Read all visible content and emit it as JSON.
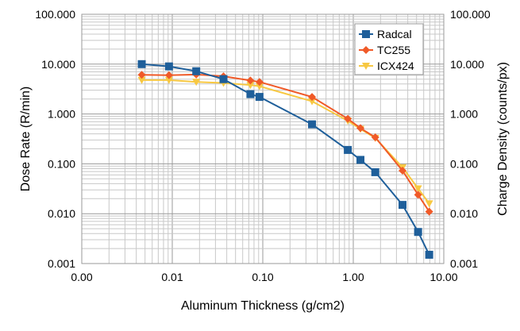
{
  "chart_data": {
    "type": "scatter",
    "xlabel": "Aluminum Thickness (g/cm2)",
    "ylabel_left": "Dose Rate (R/min)",
    "ylabel_right": "Charge Density (counts/px)",
    "x_scale": "log",
    "y_scale": "log",
    "xlim": [
      0.001,
      10
    ],
    "ylim": [
      0.001,
      100
    ],
    "x_ticks": [
      "0.00",
      "0.01",
      "0.10",
      "1.00",
      "10.00"
    ],
    "y_ticks": [
      "0.001",
      "0.010",
      "0.100",
      "1.000",
      "10.000",
      "100.000"
    ],
    "grid": true,
    "legend_position": "top-right",
    "series": [
      {
        "name": "Radcal",
        "color": "#1f5f9a",
        "marker": "square",
        "x": [
          0.0046,
          0.0092,
          0.0184,
          0.0368,
          0.073,
          0.092,
          0.35,
          0.87,
          1.2,
          1.75,
          3.5,
          5.2,
          6.9
        ],
        "y": [
          10.0,
          9.0,
          7.2,
          5.0,
          2.5,
          2.2,
          0.62,
          0.19,
          0.12,
          0.068,
          0.015,
          0.0043,
          0.0015
        ]
      },
      {
        "name": "TC255",
        "color": "#f05a28",
        "marker": "diamond",
        "x": [
          0.0046,
          0.0092,
          0.0184,
          0.0368,
          0.073,
          0.092,
          0.35,
          0.87,
          1.2,
          1.75,
          3.5,
          5.2,
          6.9
        ],
        "y": [
          6.1,
          6.0,
          6.2,
          5.7,
          4.7,
          4.4,
          2.2,
          0.8,
          0.52,
          0.34,
          0.073,
          0.024,
          0.011
        ]
      },
      {
        "name": "ICX424",
        "color": "#f7c842",
        "marker": "triangle-down",
        "x": [
          0.0046,
          0.0092,
          0.0184,
          0.0368,
          0.073,
          0.092,
          0.35,
          0.87,
          1.2,
          1.75,
          3.5,
          5.2,
          6.9
        ],
        "y": [
          4.8,
          4.8,
          4.4,
          4.2,
          3.8,
          3.6,
          1.8,
          0.73,
          0.5,
          0.33,
          0.085,
          0.032,
          0.016
        ]
      }
    ]
  }
}
